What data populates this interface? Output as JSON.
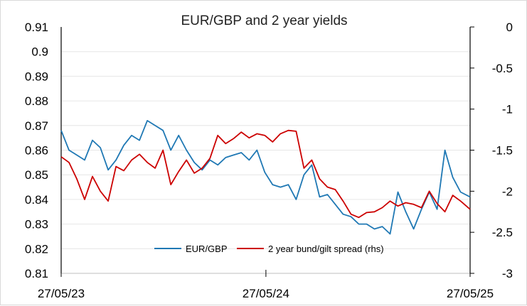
{
  "chart_data": {
    "type": "line",
    "title": "EUR/GBP and 2 year yields",
    "x_tick_labels": [
      "27/05/23",
      "27/05/24",
      "27/05/25"
    ],
    "x_range": [
      "2023-05-27",
      "2025-05-27"
    ],
    "y_left": {
      "min": 0.81,
      "max": 0.91,
      "ticks": [
        "0.91",
        "0.9",
        "0.89",
        "0.88",
        "0.87",
        "0.86",
        "0.85",
        "0.84",
        "0.83",
        "0.82",
        "0.81"
      ]
    },
    "y_right": {
      "min": -3,
      "max": 0,
      "ticks": [
        "0",
        "-0.5",
        "-1",
        "-1.5",
        "-2",
        "-2.5",
        "-3"
      ]
    },
    "grid": "horizontal",
    "legend_position": "bottom-inside",
    "series": [
      {
        "name": "EUR/GBP",
        "axis": "left",
        "color": "#1f78b4",
        "points": [
          [
            "2023-05-27",
            0.868
          ],
          [
            "2023-06-10",
            0.86
          ],
          [
            "2023-06-24",
            0.858
          ],
          [
            "2023-07-08",
            0.856
          ],
          [
            "2023-07-22",
            0.864
          ],
          [
            "2023-08-05",
            0.861
          ],
          [
            "2023-08-19",
            0.852
          ],
          [
            "2023-09-02",
            0.856
          ],
          [
            "2023-09-16",
            0.862
          ],
          [
            "2023-09-30",
            0.866
          ],
          [
            "2023-10-14",
            0.864
          ],
          [
            "2023-10-28",
            0.872
          ],
          [
            "2023-11-11",
            0.87
          ],
          [
            "2023-11-25",
            0.868
          ],
          [
            "2023-12-09",
            0.86
          ],
          [
            "2023-12-23",
            0.866
          ],
          [
            "2024-01-06",
            0.86
          ],
          [
            "2024-01-20",
            0.855
          ],
          [
            "2024-02-03",
            0.852
          ],
          [
            "2024-02-17",
            0.856
          ],
          [
            "2024-03-02",
            0.854
          ],
          [
            "2024-03-16",
            0.857
          ],
          [
            "2024-03-30",
            0.858
          ],
          [
            "2024-04-13",
            0.859
          ],
          [
            "2024-04-27",
            0.856
          ],
          [
            "2024-05-11",
            0.86
          ],
          [
            "2024-05-25",
            0.851
          ],
          [
            "2024-06-08",
            0.846
          ],
          [
            "2024-06-22",
            0.845
          ],
          [
            "2024-07-06",
            0.846
          ],
          [
            "2024-07-20",
            0.84
          ],
          [
            "2024-08-03",
            0.85
          ],
          [
            "2024-08-17",
            0.854
          ],
          [
            "2024-08-31",
            0.841
          ],
          [
            "2024-09-14",
            0.842
          ],
          [
            "2024-09-28",
            0.838
          ],
          [
            "2024-10-12",
            0.834
          ],
          [
            "2024-10-26",
            0.833
          ],
          [
            "2024-11-09",
            0.83
          ],
          [
            "2024-11-23",
            0.83
          ],
          [
            "2024-12-07",
            0.828
          ],
          [
            "2024-12-21",
            0.829
          ],
          [
            "2025-01-04",
            0.826
          ],
          [
            "2025-01-18",
            0.843
          ],
          [
            "2025-02-01",
            0.835
          ],
          [
            "2025-02-15",
            0.828
          ],
          [
            "2025-03-01",
            0.836
          ],
          [
            "2025-03-15",
            0.843
          ],
          [
            "2025-03-29",
            0.836
          ],
          [
            "2025-04-12",
            0.86
          ],
          [
            "2025-04-26",
            0.849
          ],
          [
            "2025-05-10",
            0.843
          ],
          [
            "2025-05-27",
            0.841
          ]
        ]
      },
      {
        "name": "2 year bund/gilt spread (rhs)",
        "axis": "right",
        "color": "#cc0000",
        "points": [
          [
            "2023-05-27",
            -1.58
          ],
          [
            "2023-06-10",
            -1.65
          ],
          [
            "2023-06-24",
            -1.85
          ],
          [
            "2023-07-08",
            -2.1
          ],
          [
            "2023-07-22",
            -1.82
          ],
          [
            "2023-08-05",
            -2.0
          ],
          [
            "2023-08-19",
            -2.12
          ],
          [
            "2023-09-02",
            -1.7
          ],
          [
            "2023-09-16",
            -1.75
          ],
          [
            "2023-09-30",
            -1.62
          ],
          [
            "2023-10-14",
            -1.55
          ],
          [
            "2023-10-28",
            -1.65
          ],
          [
            "2023-11-11",
            -1.72
          ],
          [
            "2023-11-25",
            -1.5
          ],
          [
            "2023-12-09",
            -1.92
          ],
          [
            "2023-12-23",
            -1.76
          ],
          [
            "2024-01-06",
            -1.62
          ],
          [
            "2024-01-20",
            -1.78
          ],
          [
            "2024-02-03",
            -1.72
          ],
          [
            "2024-02-17",
            -1.6
          ],
          [
            "2024-03-02",
            -1.32
          ],
          [
            "2024-03-16",
            -1.42
          ],
          [
            "2024-03-30",
            -1.36
          ],
          [
            "2024-04-13",
            -1.28
          ],
          [
            "2024-04-27",
            -1.35
          ],
          [
            "2024-05-11",
            -1.3
          ],
          [
            "2024-05-25",
            -1.32
          ],
          [
            "2024-06-08",
            -1.4
          ],
          [
            "2024-06-22",
            -1.3
          ],
          [
            "2024-07-06",
            -1.26
          ],
          [
            "2024-07-20",
            -1.27
          ],
          [
            "2024-08-03",
            -1.72
          ],
          [
            "2024-08-17",
            -1.62
          ],
          [
            "2024-08-31",
            -1.85
          ],
          [
            "2024-09-14",
            -1.95
          ],
          [
            "2024-09-28",
            -1.98
          ],
          [
            "2024-10-12",
            -2.12
          ],
          [
            "2024-10-26",
            -2.28
          ],
          [
            "2024-11-09",
            -2.32
          ],
          [
            "2024-11-23",
            -2.26
          ],
          [
            "2024-12-07",
            -2.25
          ],
          [
            "2024-12-21",
            -2.2
          ],
          [
            "2025-01-04",
            -2.12
          ],
          [
            "2025-01-18",
            -2.18
          ],
          [
            "2025-02-01",
            -2.14
          ],
          [
            "2025-02-15",
            -2.16
          ],
          [
            "2025-03-01",
            -2.2
          ],
          [
            "2025-03-15",
            -2.0
          ],
          [
            "2025-03-29",
            -2.15
          ],
          [
            "2025-04-12",
            -2.25
          ],
          [
            "2025-04-26",
            -2.05
          ],
          [
            "2025-05-10",
            -2.12
          ],
          [
            "2025-05-27",
            -2.22
          ]
        ]
      }
    ]
  }
}
